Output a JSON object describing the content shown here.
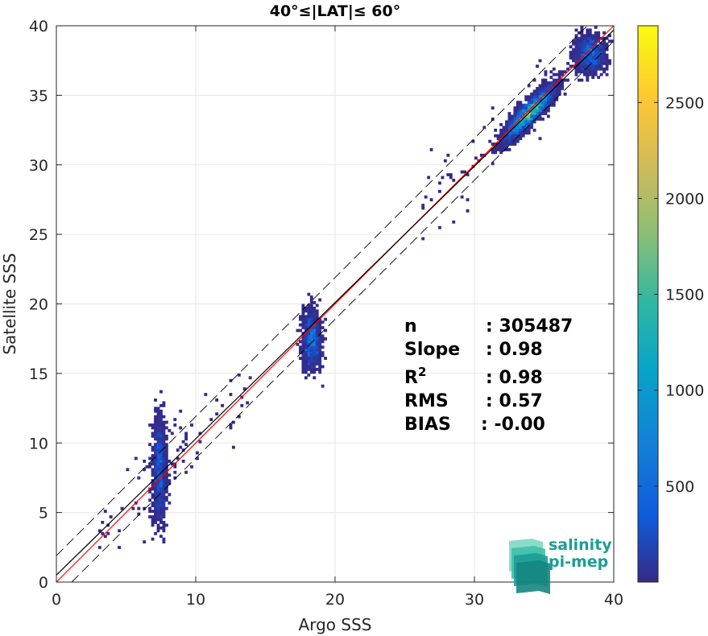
{
  "chart_data": {
    "type": "heatmap",
    "title": "40°≤|LAT|≤ 60°",
    "xlabel": "Argo SSS",
    "ylabel": "Satellite SSS",
    "xlim": [
      0,
      40
    ],
    "ylim": [
      0,
      40
    ],
    "xticks": [
      "0",
      "10",
      "20",
      "30",
      "40"
    ],
    "yticks": [
      "0",
      "5",
      "10",
      "15",
      "20",
      "25",
      "30",
      "35",
      "40"
    ],
    "grid": true,
    "colormap": "parula",
    "colorbar": {
      "range": [
        0,
        2900
      ],
      "ticks": [
        "500",
        "1000",
        "1500",
        "2000",
        "2500"
      ]
    },
    "clusters": [
      {
        "x_center": 7.4,
        "y_center": 8.0,
        "x_spread": 0.35,
        "y_spread": 2.8,
        "peak_density": 400
      },
      {
        "x_center": 18.3,
        "y_center": 17.5,
        "x_spread": 0.5,
        "y_spread": 1.6,
        "peak_density": 500
      },
      {
        "x_center": 34.0,
        "y_center": 33.8,
        "x_spread": 1.4,
        "y_spread": 1.3,
        "peak_density": 2800
      },
      {
        "x_center": 38.3,
        "y_center": 38.0,
        "x_spread": 0.8,
        "y_spread": 1.0,
        "peak_density": 700
      }
    ],
    "lines": [
      {
        "name": "identity",
        "slope": 1.0,
        "intercept": 0.0,
        "color": "#ff0000"
      },
      {
        "name": "regression",
        "slope": 0.98,
        "intercept": 0.5,
        "color": "#000000"
      },
      {
        "name": "upper bound",
        "slope": 1.0,
        "intercept": 1.9,
        "color": "#000000",
        "dash": true
      },
      {
        "name": "lower bound",
        "slope": 1.0,
        "intercept": -1.1,
        "color": "#000000",
        "dash": true
      }
    ],
    "stats": [
      {
        "label": "n",
        "value": ": 305487"
      },
      {
        "label": "Slope",
        "value": ": 0.98"
      },
      {
        "label": "R",
        "sup": "2",
        "value": ": 0.98"
      },
      {
        "label": "RMS",
        "value": ": 0.57"
      },
      {
        "label": "BIAS",
        "value": ": -0.00"
      }
    ],
    "logo": {
      "line1": "salinity",
      "line2": "pi-mep"
    }
  }
}
